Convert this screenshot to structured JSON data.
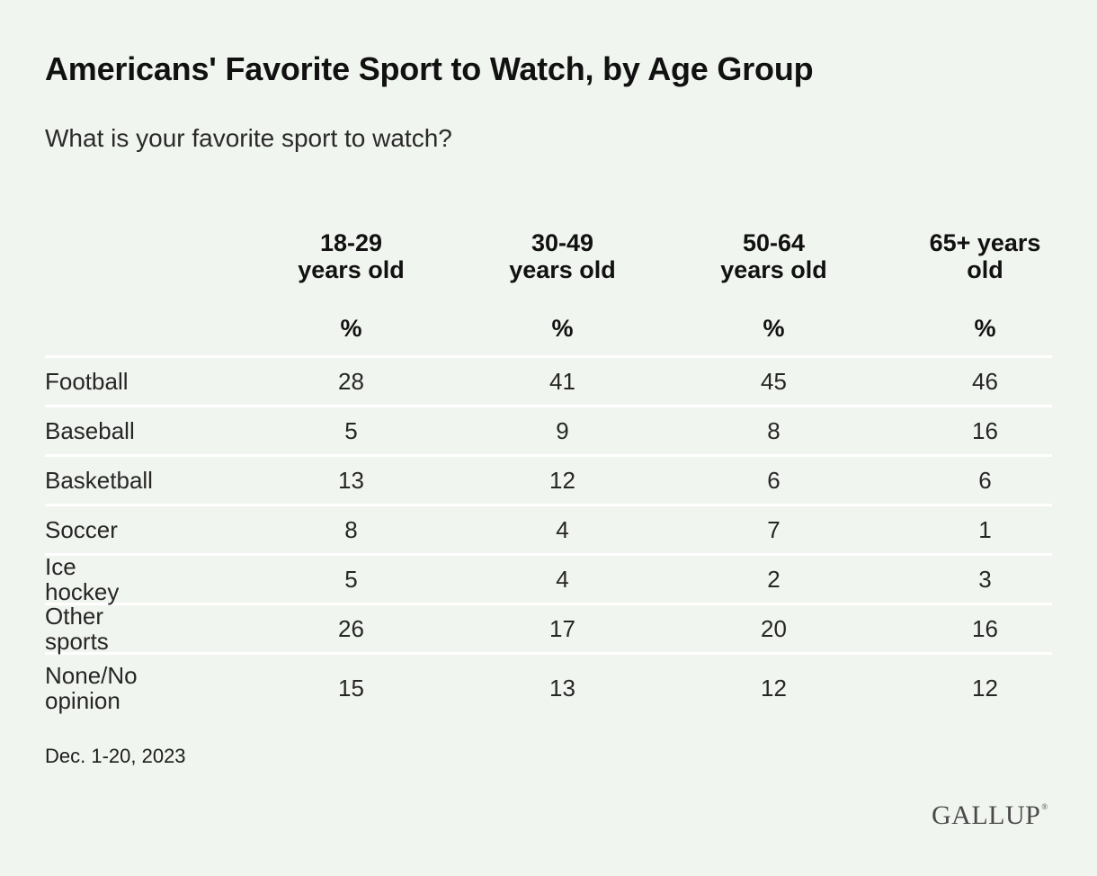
{
  "title": "Americans' Favorite Sport to Watch, by Age Group",
  "subtitle": "What is your favorite sport to watch?",
  "footnote": "Dec. 1-20, 2023",
  "logo": "GALLUP",
  "logo_mark": "®",
  "chart_data": {
    "type": "table",
    "columns": [
      {
        "line1": "18-29",
        "line2": "years old",
        "unit": "%"
      },
      {
        "line1": "30-49",
        "line2": "years old",
        "unit": "%"
      },
      {
        "line1": "50-64",
        "line2": "years old",
        "unit": "%"
      },
      {
        "line1": "65+ years",
        "line2": "old",
        "unit": "%"
      }
    ],
    "rows": [
      {
        "label": "Football",
        "values": [
          "28",
          "41",
          "45",
          "46"
        ]
      },
      {
        "label": "Baseball",
        "values": [
          "5",
          "9",
          "8",
          "16"
        ]
      },
      {
        "label": "Basketball",
        "values": [
          "13",
          "12",
          "6",
          "6"
        ]
      },
      {
        "label": "Soccer",
        "values": [
          "8",
          "4",
          "7",
          "1"
        ]
      },
      {
        "label": "Ice hockey",
        "values": [
          "5",
          "4",
          "2",
          "3"
        ]
      },
      {
        "label": "Other sports",
        "values": [
          "26",
          "17",
          "20",
          "16"
        ]
      },
      {
        "label": "None/No opinion",
        "values": [
          "15",
          "13",
          "12",
          "12"
        ]
      }
    ]
  }
}
